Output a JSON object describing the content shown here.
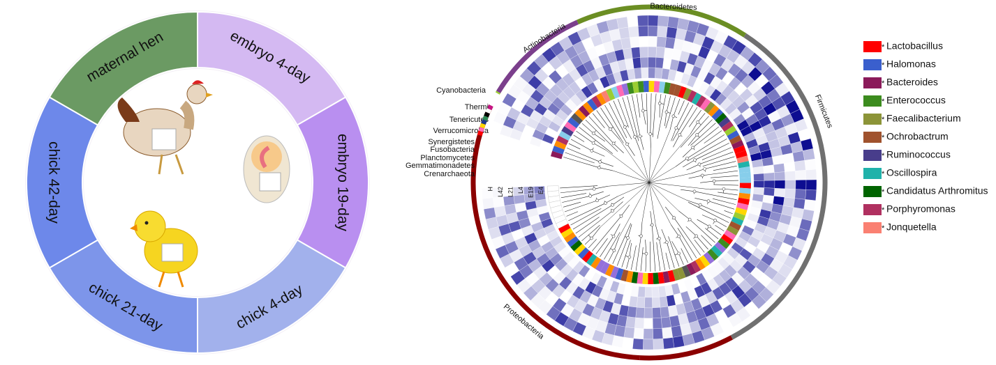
{
  "stages": [
    {
      "label": "embryo 4-day",
      "color": "#d4b9f2"
    },
    {
      "label": "embryo 19-day",
      "color": "#b98ff0"
    },
    {
      "label": "chick 4-day",
      "color": "#a2b1ec"
    },
    {
      "label": "chick 21-day",
      "color": "#7d95ea"
    },
    {
      "label": "chick 42-day",
      "color": "#6d88ea"
    },
    {
      "label": "maternal hen",
      "color": "#6b9a63"
    }
  ],
  "major_phyla": [
    {
      "label": "Bacteroidetes",
      "color": "#6b8e23"
    },
    {
      "label": "Firmicutes",
      "color": "#707070"
    },
    {
      "label": "Proteobacteria",
      "color": "#8b0000"
    },
    {
      "label": "Actinobacteria",
      "color": "#7b3f8c"
    }
  ],
  "minor_phyla": [
    {
      "label": "Cyanobacteria",
      "color": "#9acd32"
    },
    {
      "label": "Thermi",
      "color": "#c71585"
    },
    {
      "label": "Tenericutes",
      "color": "#ffffff"
    },
    {
      "label": "Verrucomicrobia",
      "color": "#000000"
    },
    {
      "label": "Synergistetes",
      "color": "#2e8b57"
    },
    {
      "label": "Fusobacteria",
      "color": "#1e3a8a"
    },
    {
      "label": "Planctomycetes",
      "color": "#ffd700"
    },
    {
      "label": "Gemmatimonadetes",
      "color": "#ff69b4"
    },
    {
      "label": "Crenarchaeota",
      "color": "#ff0000"
    }
  ],
  "samples": [
    "H",
    "L42",
    "L21",
    "L4",
    "E19",
    "E4"
  ],
  "legend": {
    "marker": "*",
    "items": [
      {
        "name": "Lactobacillus",
        "color": "#ff0000"
      },
      {
        "name": "Halomonas",
        "color": "#3a5fcd"
      },
      {
        "name": "Bacteroides",
        "color": "#8b1a5a"
      },
      {
        "name": "Enterococcus",
        "color": "#3c8c1e"
      },
      {
        "name": "Faecalibacterium",
        "color": "#8c9438"
      },
      {
        "name": "Ochrobactrum",
        "color": "#a0522d"
      },
      {
        "name": "Ruminococcus",
        "color": "#483d8b"
      },
      {
        "name": "Oscillospira",
        "color": "#20b2aa"
      },
      {
        "name": "Candidatus Arthromitus",
        "color": "#006400"
      },
      {
        "name": "Porphyromonas",
        "color": "#b03060"
      },
      {
        "name": "Jonquetella",
        "color": "#fa8072"
      }
    ]
  }
}
